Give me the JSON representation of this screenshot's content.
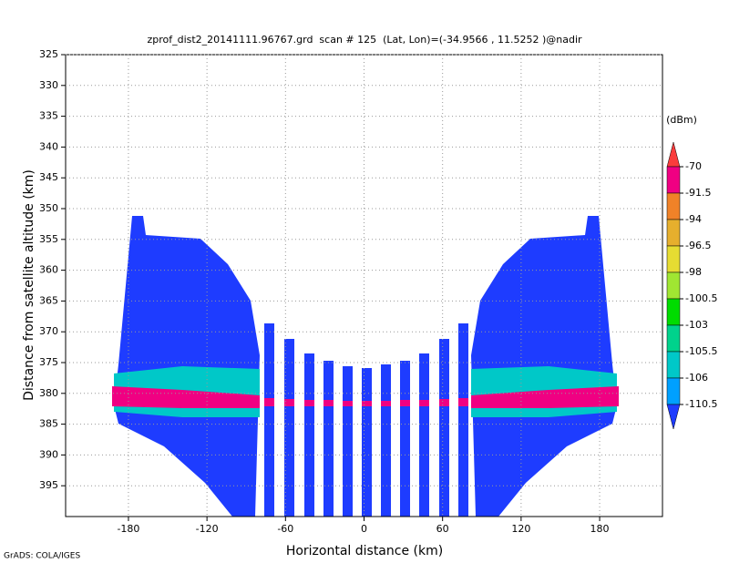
{
  "chart_data": {
    "type": "shaded",
    "title": "zprof_dist2_20141111.96767.grd  scan # 125  (Lat, Lon)=(-34.9566 , 11.5252 )@nadir",
    "x_label": "Horizontal distance (km)",
    "y_label": "Distance from satellite altitude (km)",
    "xlim": [
      -228,
      228
    ],
    "xticks": [
      -180,
      -120,
      -60,
      0,
      60,
      120,
      180
    ],
    "ylim": [
      400,
      325
    ],
    "yticks": [
      325,
      330,
      335,
      340,
      345,
      350,
      355,
      360,
      365,
      370,
      375,
      380,
      385,
      390,
      395
    ],
    "grid": true,
    "colorbar": {
      "label": "(dBm)",
      "levels": [
        -70,
        -91.5,
        -94,
        -96.5,
        -98,
        -100.5,
        -103,
        -105.5,
        -106,
        -110.5
      ],
      "colors": [
        "#fa3c3c",
        "#f00082",
        "#f08228",
        "#e6af2d",
        "#e6dc32",
        "#a0e632",
        "#00dc00",
        "#00d28c",
        "#00c8c8",
        "#00a0ff",
        "#1e3cff"
      ]
    }
  },
  "footer": "GrADS: COLA/IGES"
}
